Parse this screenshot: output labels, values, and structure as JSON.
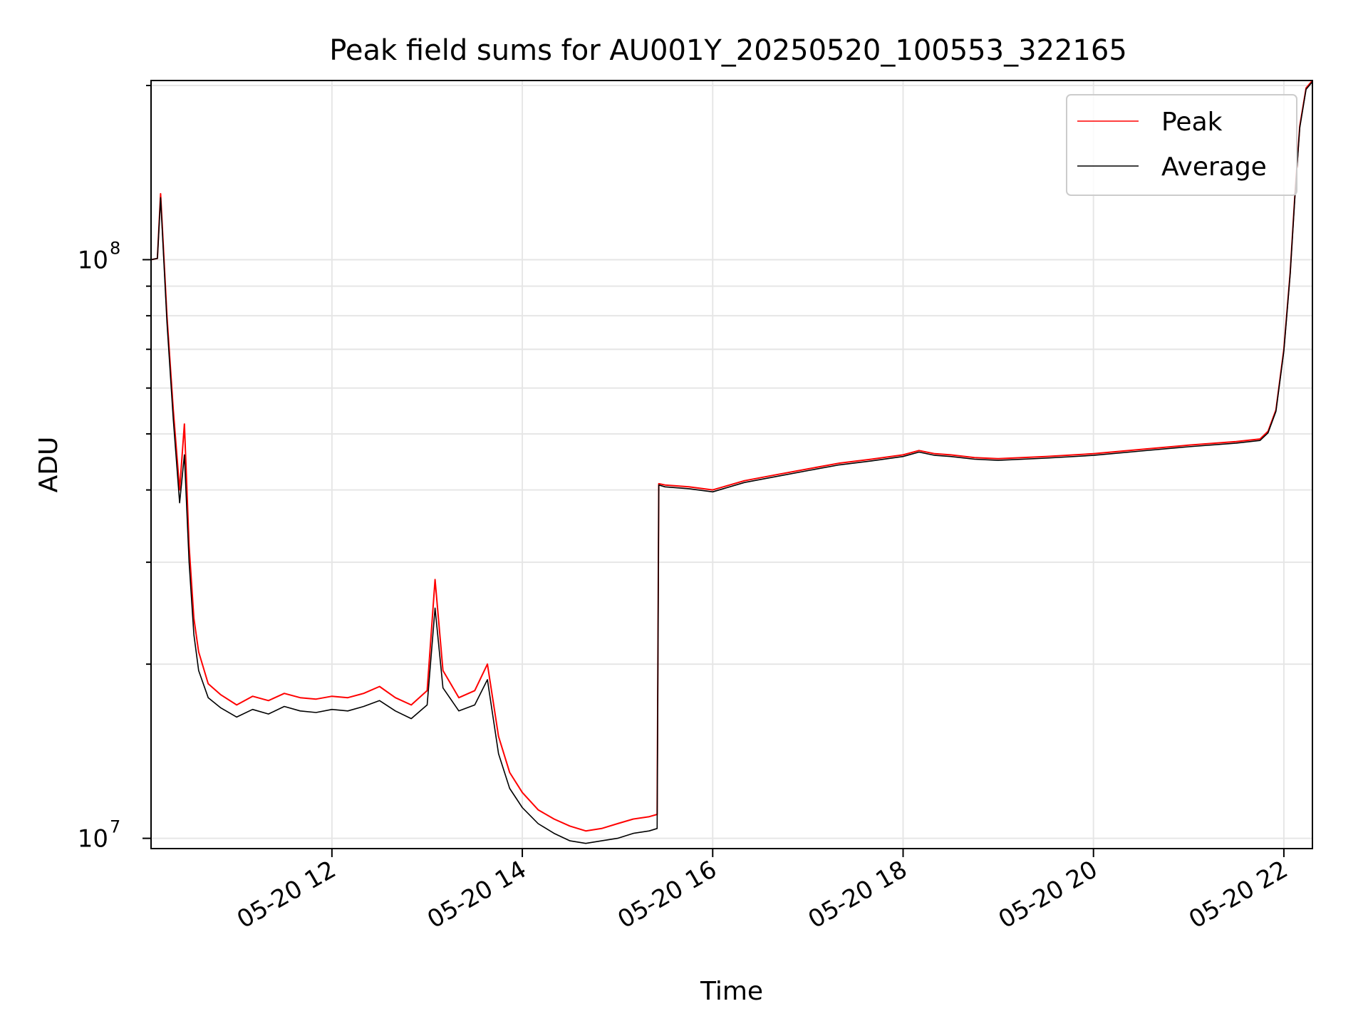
{
  "chart_data": {
    "type": "line",
    "title": "Peak field sums for AU001Y_20250520_100553_322165",
    "xlabel": "Time",
    "ylabel": "ADU",
    "x_scale": "time",
    "y_scale": "log",
    "xlim": [
      "2025-05-20 10:06",
      "2025-05-20 22:18"
    ],
    "ylim": [
      9600000,
      204000000
    ],
    "x_ticks": [
      {
        "value": "2025-05-20 12:00",
        "label": "05-20 12"
      },
      {
        "value": "2025-05-20 14:00",
        "label": "05-20 14"
      },
      {
        "value": "2025-05-20 16:00",
        "label": "05-20 16"
      },
      {
        "value": "2025-05-20 18:00",
        "label": "05-20 18"
      },
      {
        "value": "2025-05-20 20:00",
        "label": "05-20 20"
      },
      {
        "value": "2025-05-20 22:00",
        "label": "05-20 22"
      }
    ],
    "y_ticks": [
      {
        "value": 10000000,
        "label_base": "10",
        "label_exp": "7"
      },
      {
        "value": 100000000,
        "label_base": "10",
        "label_exp": "8"
      }
    ],
    "grid": true,
    "legend_position": "top-right",
    "series": [
      {
        "name": "Peak",
        "color": "#ff0000",
        "x": [
          "2025-05-20 10:06",
          "2025-05-20 10:10",
          "2025-05-20 10:12",
          "2025-05-20 10:16",
          "2025-05-20 10:20",
          "2025-05-20 10:24",
          "2025-05-20 10:27",
          "2025-05-20 10:30",
          "2025-05-20 10:33",
          "2025-05-20 10:36",
          "2025-05-20 10:42",
          "2025-05-20 10:50",
          "2025-05-20 11:00",
          "2025-05-20 11:10",
          "2025-05-20 11:20",
          "2025-05-20 11:30",
          "2025-05-20 11:40",
          "2025-05-20 11:50",
          "2025-05-20 12:00",
          "2025-05-20 12:10",
          "2025-05-20 12:20",
          "2025-05-20 12:30",
          "2025-05-20 12:40",
          "2025-05-20 12:50",
          "2025-05-20 13:00",
          "2025-05-20 13:05",
          "2025-05-20 13:10",
          "2025-05-20 13:20",
          "2025-05-20 13:30",
          "2025-05-20 13:38",
          "2025-05-20 13:45",
          "2025-05-20 13:52",
          "2025-05-20 14:00",
          "2025-05-20 14:10",
          "2025-05-20 14:20",
          "2025-05-20 14:30",
          "2025-05-20 14:40",
          "2025-05-20 14:50",
          "2025-05-20 15:00",
          "2025-05-20 15:10",
          "2025-05-20 15:20",
          "2025-05-20 15:25",
          "2025-05-20 15:26",
          "2025-05-20 15:30",
          "2025-05-20 15:45",
          "2025-05-20 16:00",
          "2025-05-20 16:20",
          "2025-05-20 16:40",
          "2025-05-20 17:00",
          "2025-05-20 17:20",
          "2025-05-20 17:40",
          "2025-05-20 18:00",
          "2025-05-20 18:10",
          "2025-05-20 18:20",
          "2025-05-20 18:30",
          "2025-05-20 18:45",
          "2025-05-20 19:00",
          "2025-05-20 19:30",
          "2025-05-20 20:00",
          "2025-05-20 20:30",
          "2025-05-20 21:00",
          "2025-05-20 21:30",
          "2025-05-20 21:45",
          "2025-05-20 21:50",
          "2025-05-20 21:55",
          "2025-05-20 22:00",
          "2025-05-20 22:04",
          "2025-05-20 22:07",
          "2025-05-20 22:10",
          "2025-05-20 22:14",
          "2025-05-20 22:18"
        ],
        "y": [
          100000000,
          100500000,
          130000000,
          80000000,
          55000000,
          40000000,
          52000000,
          32000000,
          24000000,
          21000000,
          18500000,
          17700000,
          17000000,
          17600000,
          17300000,
          17800000,
          17500000,
          17400000,
          17600000,
          17500000,
          17800000,
          18300000,
          17500000,
          17000000,
          18000000,
          28000000,
          19500000,
          17500000,
          18000000,
          20000000,
          15000000,
          13000000,
          12000000,
          11200000,
          10800000,
          10500000,
          10300000,
          10400000,
          10600000,
          10800000,
          10900000,
          11000000,
          41000000,
          40800000,
          40500000,
          40000000,
          41500000,
          42500000,
          43500000,
          44500000,
          45200000,
          46000000,
          46800000,
          46200000,
          46000000,
          45500000,
          45300000,
          45700000,
          46200000,
          47000000,
          47800000,
          48500000,
          49000000,
          50500000,
          55000000,
          70000000,
          95000000,
          130000000,
          170000000,
          198000000,
          204000000
        ]
      },
      {
        "name": "Average",
        "color": "#000000",
        "x": [
          "2025-05-20 10:06",
          "2025-05-20 10:10",
          "2025-05-20 10:12",
          "2025-05-20 10:16",
          "2025-05-20 10:20",
          "2025-05-20 10:24",
          "2025-05-20 10:27",
          "2025-05-20 10:30",
          "2025-05-20 10:33",
          "2025-05-20 10:36",
          "2025-05-20 10:42",
          "2025-05-20 10:50",
          "2025-05-20 11:00",
          "2025-05-20 11:10",
          "2025-05-20 11:20",
          "2025-05-20 11:30",
          "2025-05-20 11:40",
          "2025-05-20 11:50",
          "2025-05-20 12:00",
          "2025-05-20 12:10",
          "2025-05-20 12:20",
          "2025-05-20 12:30",
          "2025-05-20 12:40",
          "2025-05-20 12:50",
          "2025-05-20 13:00",
          "2025-05-20 13:05",
          "2025-05-20 13:10",
          "2025-05-20 13:20",
          "2025-05-20 13:30",
          "2025-05-20 13:38",
          "2025-05-20 13:45",
          "2025-05-20 13:52",
          "2025-05-20 14:00",
          "2025-05-20 14:10",
          "2025-05-20 14:20",
          "2025-05-20 14:30",
          "2025-05-20 14:40",
          "2025-05-20 14:50",
          "2025-05-20 15:00",
          "2025-05-20 15:10",
          "2025-05-20 15:20",
          "2025-05-20 15:25",
          "2025-05-20 15:26",
          "2025-05-20 15:30",
          "2025-05-20 15:45",
          "2025-05-20 16:00",
          "2025-05-20 16:20",
          "2025-05-20 16:40",
          "2025-05-20 17:00",
          "2025-05-20 17:20",
          "2025-05-20 17:40",
          "2025-05-20 18:00",
          "2025-05-20 18:10",
          "2025-05-20 18:20",
          "2025-05-20 18:30",
          "2025-05-20 18:45",
          "2025-05-20 19:00",
          "2025-05-20 19:30",
          "2025-05-20 20:00",
          "2025-05-20 20:30",
          "2025-05-20 21:00",
          "2025-05-20 21:30",
          "2025-05-20 21:45",
          "2025-05-20 21:50",
          "2025-05-20 21:55",
          "2025-05-20 22:00",
          "2025-05-20 22:04",
          "2025-05-20 22:07",
          "2025-05-20 22:10",
          "2025-05-20 22:14",
          "2025-05-20 22:18"
        ],
        "y": [
          100000000,
          100500000,
          128000000,
          78000000,
          53000000,
          38000000,
          46000000,
          30000000,
          22500000,
          19500000,
          17500000,
          16800000,
          16200000,
          16700000,
          16400000,
          16900000,
          16600000,
          16500000,
          16700000,
          16600000,
          16900000,
          17300000,
          16600000,
          16100000,
          17000000,
          25000000,
          18200000,
          16600000,
          17000000,
          18800000,
          14000000,
          12200000,
          11300000,
          10600000,
          10200000,
          9900000,
          9800000,
          9900000,
          10000000,
          10200000,
          10300000,
          10400000,
          40800000,
          40500000,
          40200000,
          39700000,
          41200000,
          42200000,
          43200000,
          44200000,
          44900000,
          45700000,
          46500000,
          45900000,
          45700000,
          45200000,
          45000000,
          45400000,
          45900000,
          46700000,
          47500000,
          48200000,
          48700000,
          50200000,
          54700000,
          69500000,
          94500000,
          129000000,
          169000000,
          197000000,
          203000000
        ]
      }
    ]
  }
}
